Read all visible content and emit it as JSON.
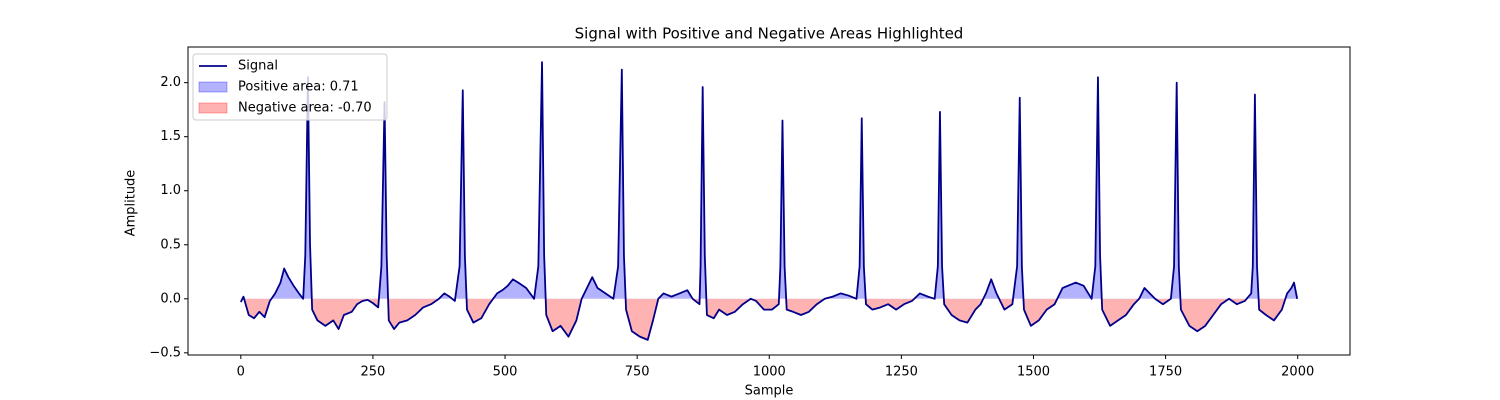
{
  "chart_data": {
    "type": "line",
    "title": "Signal with Positive and Negative Areas Highlighted",
    "xlabel": "Sample",
    "ylabel": "Amplitude",
    "x": [
      0,
      5,
      15,
      25,
      35,
      45,
      55,
      65,
      75,
      82,
      90,
      100,
      110,
      118,
      122,
      127,
      131,
      135,
      145,
      160,
      175,
      185,
      195,
      210,
      220,
      230,
      240,
      250,
      260,
      266,
      272,
      276,
      280,
      290,
      300,
      315,
      330,
      345,
      360,
      375,
      385,
      395,
      405,
      414,
      420,
      424,
      428,
      440,
      455,
      470,
      485,
      495,
      505,
      515,
      525,
      540,
      555,
      563,
      570,
      574,
      578,
      590,
      605,
      620,
      635,
      645,
      655,
      665,
      675,
      690,
      705,
      714,
      721,
      725,
      729,
      740,
      755,
      770,
      780,
      790,
      800,
      815,
      830,
      845,
      855,
      868,
      870,
      874,
      878,
      882,
      895,
      905,
      920,
      935,
      950,
      965,
      975,
      990,
      1005,
      1018,
      1021,
      1025,
      1029,
      1033,
      1045,
      1060,
      1075,
      1090,
      1105,
      1120,
      1135,
      1150,
      1165,
      1171,
      1175,
      1179,
      1183,
      1195,
      1210,
      1225,
      1240,
      1255,
      1270,
      1285,
      1300,
      1313,
      1319,
      1323,
      1327,
      1331,
      1345,
      1360,
      1375,
      1390,
      1400,
      1410,
      1420,
      1430,
      1445,
      1460,
      1469,
      1474,
      1478,
      1482,
      1495,
      1510,
      1525,
      1540,
      1555,
      1565,
      1580,
      1595,
      1610,
      1617,
      1622,
      1626,
      1630,
      1645,
      1660,
      1675,
      1690,
      1700,
      1710,
      1720,
      1730,
      1745,
      1760,
      1766,
      1771,
      1775,
      1779,
      1795,
      1810,
      1825,
      1840,
      1855,
      1870,
      1885,
      1900,
      1912,
      1915,
      1919,
      1923,
      1927,
      1940,
      1955,
      1970,
      1980,
      1988,
      1993,
      1999
    ],
    "series": [
      {
        "name": "Signal",
        "color": "#00008b",
        "values": [
          -0.03,
          0.02,
          -0.15,
          -0.18,
          -0.12,
          -0.17,
          -0.02,
          0.05,
          0.15,
          0.28,
          0.2,
          0.12,
          0.05,
          0.0,
          0.4,
          2.05,
          0.5,
          -0.1,
          -0.2,
          -0.25,
          -0.2,
          -0.28,
          -0.15,
          -0.12,
          -0.05,
          -0.02,
          -0.01,
          -0.04,
          -0.08,
          0.3,
          1.82,
          0.4,
          -0.2,
          -0.28,
          -0.22,
          -0.2,
          -0.15,
          -0.08,
          -0.05,
          0.0,
          0.05,
          0.02,
          -0.02,
          0.3,
          1.93,
          0.4,
          -0.1,
          -0.22,
          -0.18,
          -0.05,
          0.05,
          0.08,
          0.12,
          0.18,
          0.15,
          0.1,
          0.0,
          0.3,
          2.19,
          0.4,
          -0.15,
          -0.3,
          -0.25,
          -0.35,
          -0.2,
          0.0,
          0.1,
          0.2,
          0.1,
          0.05,
          0.0,
          0.3,
          2.12,
          0.4,
          -0.1,
          -0.3,
          -0.35,
          -0.38,
          -0.2,
          0.0,
          0.05,
          0.02,
          0.05,
          0.08,
          0.0,
          -0.05,
          0.3,
          1.96,
          0.4,
          -0.15,
          -0.18,
          -0.1,
          -0.15,
          -0.12,
          -0.05,
          0.0,
          -0.02,
          -0.1,
          -0.1,
          -0.05,
          0.3,
          1.65,
          0.3,
          -0.1,
          -0.12,
          -0.15,
          -0.12,
          -0.05,
          0.0,
          0.02,
          0.05,
          0.03,
          0.0,
          0.3,
          1.67,
          0.3,
          -0.05,
          -0.1,
          -0.08,
          -0.05,
          -0.1,
          -0.05,
          -0.02,
          0.05,
          0.02,
          0.0,
          0.3,
          1.73,
          0.3,
          -0.05,
          -0.15,
          -0.2,
          -0.22,
          -0.1,
          -0.05,
          0.05,
          0.18,
          0.05,
          -0.1,
          -0.05,
          0.3,
          1.86,
          0.3,
          -0.1,
          -0.25,
          -0.2,
          -0.1,
          -0.05,
          0.1,
          0.12,
          0.15,
          0.12,
          0.0,
          0.3,
          2.05,
          0.4,
          -0.1,
          -0.25,
          -0.2,
          -0.15,
          -0.05,
          0.0,
          0.1,
          0.05,
          0.0,
          -0.05,
          0.0,
          0.3,
          2.0,
          0.3,
          -0.1,
          -0.25,
          -0.3,
          -0.25,
          -0.15,
          -0.05,
          0.0,
          -0.05,
          -0.02,
          0.05,
          0.3,
          1.89,
          0.3,
          -0.1,
          -0.15,
          -0.2,
          -0.1,
          0.05,
          0.1,
          0.15,
          0.0
        ]
      }
    ],
    "fills": [
      {
        "name": "Positive area: 0.71",
        "color": "blue"
      },
      {
        "name": "Negative area: -0.70",
        "color": "red"
      }
    ],
    "xlim": [
      -99.95,
      2098.95
    ],
    "ylim": [
      -0.52,
      2.33
    ],
    "xticks": [
      0,
      250,
      500,
      750,
      1000,
      1250,
      1500,
      1750,
      2000
    ],
    "yticks": [
      {
        "value": -0.5,
        "label": "−0.5"
      },
      {
        "value": 0.0,
        "label": "0.0"
      },
      {
        "value": 0.5,
        "label": "0.5"
      },
      {
        "value": 1.0,
        "label": "1.0"
      },
      {
        "value": 1.5,
        "label": "1.5"
      },
      {
        "value": 2.0,
        "label": "2.0"
      }
    ],
    "legend": "upper left"
  }
}
